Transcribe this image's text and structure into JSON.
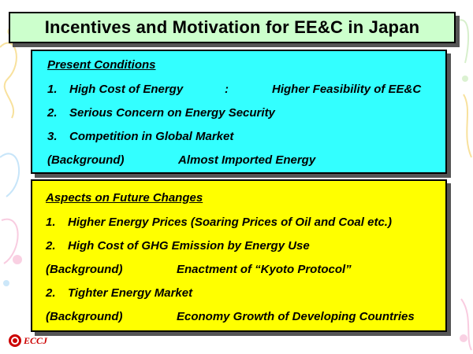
{
  "title": "Incentives and Motivation for EE&C in Japan",
  "present": {
    "heading": "Present Conditions",
    "item1_number": "1.",
    "item1_label": "High Cost of Energy",
    "item1_sep": ":",
    "item1_value": "Higher Feasibility of EE&C",
    "item2_number": "2.",
    "item2_label": "Serious Concern on Energy Security",
    "item3_number": "3.",
    "item3_label": "Competition in Global Market",
    "background_label": "(Background)",
    "background_value": "Almost Imported Energy"
  },
  "future": {
    "heading": "Aspects on Future Changes",
    "item1_number": "1.",
    "item1_label": "Higher Energy Prices (Soaring Prices of Oil and Coal etc.)",
    "item2_number": "2.",
    "item2_label": "High Cost of GHG Emission by Energy Use",
    "background1_label": "(Background)",
    "background1_value": "Enactment of “Kyoto Protocol”",
    "item3_number": "2.",
    "item3_label": "Tighter Energy Market",
    "background2_label": "(Background)",
    "background2_value": "Economy Growth of Developing Countries"
  },
  "logo": {
    "text": "ECCJ",
    "color": "#cc0000"
  },
  "colors": {
    "title_bg": "#ccffcc",
    "present_bg": "#33ffff",
    "future_bg": "#ffff00"
  }
}
